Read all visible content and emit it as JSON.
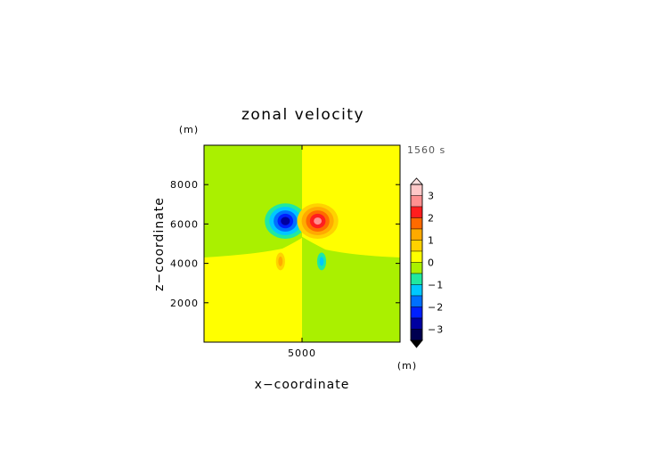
{
  "chart_data": {
    "type": "heatmap",
    "title": "zonal velocity",
    "xlabel": "x−coordinate",
    "ylabel": "z−coordinate",
    "x_unit": "(m)",
    "y_unit": "(m)",
    "time_label": "1560 s",
    "xlim": [
      0,
      10000
    ],
    "ylim": [
      0,
      10000
    ],
    "x_ticks": [
      {
        "value": 5000,
        "label": "5000"
      }
    ],
    "y_ticks": [
      {
        "value": 2000,
        "label": "2000"
      },
      {
        "value": 4000,
        "label": "4000"
      },
      {
        "value": 6000,
        "label": "6000"
      },
      {
        "value": 8000,
        "label": "8000"
      }
    ],
    "colorbar": {
      "min": -3.5,
      "max": 3.5,
      "ticks": [
        {
          "value": 3,
          "label": "3"
        },
        {
          "value": 2,
          "label": "2"
        },
        {
          "value": 1,
          "label": "1"
        },
        {
          "value": 0,
          "label": "0"
        },
        {
          "value": -1,
          "label": "−1"
        },
        {
          "value": -2,
          "label": "−2"
        },
        {
          "value": -3,
          "label": "−3"
        }
      ],
      "levels": [
        {
          "lo": 3.0,
          "hi": 3.5,
          "color": "#ffc8c8"
        },
        {
          "lo": 2.5,
          "hi": 3.0,
          "color": "#ff9090"
        },
        {
          "lo": 2.0,
          "hi": 2.5,
          "color": "#ff1e1e"
        },
        {
          "lo": 1.5,
          "hi": 2.0,
          "color": "#ff6a00"
        },
        {
          "lo": 1.0,
          "hi": 1.5,
          "color": "#ffaa00"
        },
        {
          "lo": 0.5,
          "hi": 1.0,
          "color": "#ffd200"
        },
        {
          "lo": 0.0,
          "hi": 0.5,
          "color": "#ffff00"
        },
        {
          "lo": -0.5,
          "hi": 0.0,
          "color": "#aaf000"
        },
        {
          "lo": -1.0,
          "hi": -0.5,
          "color": "#20e8a0"
        },
        {
          "lo": -1.5,
          "hi": -1.0,
          "color": "#00c8ff"
        },
        {
          "lo": -2.0,
          "hi": -1.5,
          "color": "#0070ff"
        },
        {
          "lo": -2.5,
          "hi": -2.0,
          "color": "#0020ff"
        },
        {
          "lo": -3.0,
          "hi": -2.5,
          "color": "#0000a0"
        },
        {
          "lo": -3.5,
          "hi": -3.0,
          "color": "#000050"
        }
      ],
      "over_color": "#ffe0e0",
      "under_color": "#000000"
    },
    "regions": [
      {
        "name": "upper-left",
        "color": "#aaf000"
      },
      {
        "name": "upper-right",
        "color": "#ffff00"
      },
      {
        "name": "lower-left",
        "color": "#ffff00"
      },
      {
        "name": "lower-right",
        "color": "#aaf000"
      }
    ],
    "vortices": [
      {
        "name": "negative-vortex",
        "cx": 4150,
        "cz": 6150,
        "rings": [
          {
            "rx": 1050,
            "rz": 900,
            "color": "#20e8a0"
          },
          {
            "rx": 820,
            "rz": 720,
            "color": "#00c8ff"
          },
          {
            "rx": 600,
            "rz": 540,
            "color": "#0070ff"
          },
          {
            "rx": 400,
            "rz": 370,
            "color": "#0020ff"
          },
          {
            "rx": 230,
            "rz": 210,
            "color": "#0000a0"
          }
        ]
      },
      {
        "name": "positive-vortex",
        "cx": 5800,
        "cz": 6150,
        "rings": [
          {
            "rx": 1050,
            "rz": 900,
            "color": "#ffd200"
          },
          {
            "rx": 820,
            "rz": 720,
            "color": "#ffaa00"
          },
          {
            "rx": 600,
            "rz": 540,
            "color": "#ff6a00"
          },
          {
            "rx": 400,
            "rz": 370,
            "color": "#ff1e1e"
          },
          {
            "rx": 200,
            "rz": 180,
            "color": "#ff9090"
          }
        ]
      },
      {
        "name": "lower-negative-blob",
        "cx": 6000,
        "cz": 4100,
        "rings": [
          {
            "rx": 230,
            "rz": 450,
            "color": "#20e8a0"
          },
          {
            "rx": 110,
            "rz": 230,
            "color": "#00c8ff"
          }
        ]
      },
      {
        "name": "lower-positive-blob",
        "cx": 3900,
        "cz": 4100,
        "rings": [
          {
            "rx": 230,
            "rz": 450,
            "color": "#ffd200"
          },
          {
            "rx": 110,
            "rz": 250,
            "color": "#ffaa00"
          }
        ]
      }
    ]
  }
}
